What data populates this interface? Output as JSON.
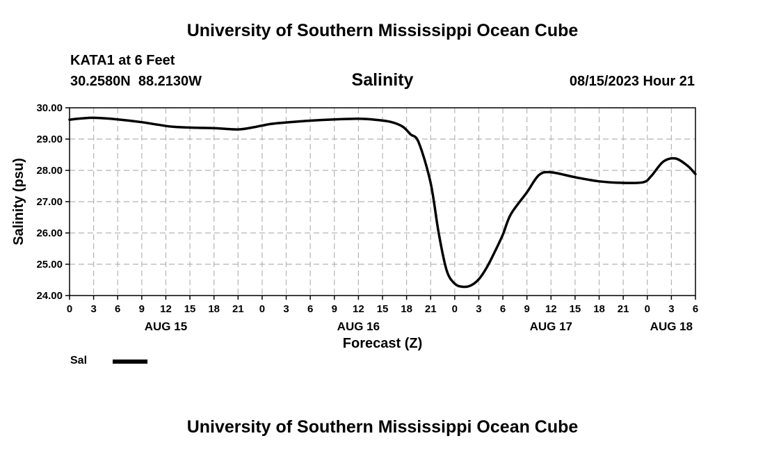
{
  "page": {
    "top_title": "University of Southern Mississippi Ocean Cube",
    "bottom_title": "University of Southern Mississippi Ocean Cube",
    "station_line": "KATA1 at 6 Feet",
    "coords_line": "30.2580N  88.2130W",
    "variable_title": "Salinity",
    "forecast_time": "08/15/2023 Hour 21"
  },
  "chart_data": {
    "type": "line",
    "title": "Salinity",
    "xlabel": "Forecast (Z)",
    "ylabel": "Salinity (psu)",
    "ylim": [
      24.0,
      30.0
    ],
    "yticks": [
      24.0,
      25.0,
      26.0,
      27.0,
      28.0,
      29.0,
      30.0
    ],
    "ytick_labels": [
      "24.00",
      "25.00",
      "26.00",
      "27.00",
      "28.00",
      "29.00",
      "30.00"
    ],
    "xlim_hours": [
      0,
      78
    ],
    "x_tick_hours": [
      0,
      3,
      6,
      9,
      12,
      15,
      18,
      21,
      24,
      27,
      30,
      33,
      36,
      39,
      42,
      45,
      48,
      51,
      54,
      57,
      60,
      63,
      66,
      69,
      72,
      75,
      78
    ],
    "x_tick_labels": [
      "0",
      "3",
      "6",
      "9",
      "12",
      "15",
      "18",
      "21",
      "0",
      "3",
      "6",
      "9",
      "12",
      "15",
      "18",
      "21",
      "0",
      "3",
      "6",
      "9",
      "12",
      "15",
      "18",
      "21",
      "0",
      "3",
      "6"
    ],
    "date_labels": [
      {
        "hour": 12,
        "label": "AUG 15"
      },
      {
        "hour": 36,
        "label": "AUG 16"
      },
      {
        "hour": 60,
        "label": "AUG 17"
      },
      {
        "hour": 75,
        "label": "AUG 18"
      }
    ],
    "grid": true,
    "legend": [
      {
        "name": "Sal",
        "color": "#000000"
      }
    ],
    "series": [
      {
        "name": "Sal",
        "x_hours": [
          0,
          1.5,
          3,
          6,
          9,
          11,
          13,
          16,
          18,
          21,
          23,
          25,
          27,
          30,
          33,
          36,
          38,
          40,
          41.5,
          42.5,
          43.5,
          45,
          46,
          47,
          48,
          49,
          50,
          51,
          52,
          53,
          54,
          55,
          57,
          58.5,
          60,
          63,
          66,
          69,
          71.5,
          72.5,
          74,
          75.5,
          77,
          78
        ],
        "values": [
          29.62,
          29.66,
          29.68,
          29.63,
          29.54,
          29.46,
          29.39,
          29.36,
          29.35,
          29.31,
          29.38,
          29.48,
          29.53,
          29.59,
          29.63,
          29.65,
          29.62,
          29.55,
          29.4,
          29.15,
          28.9,
          27.6,
          26.0,
          24.8,
          24.38,
          24.28,
          24.32,
          24.52,
          24.9,
          25.4,
          25.95,
          26.6,
          27.3,
          27.85,
          27.94,
          27.78,
          27.65,
          27.6,
          27.62,
          27.82,
          28.28,
          28.38,
          28.15,
          27.88
        ]
      }
    ]
  }
}
